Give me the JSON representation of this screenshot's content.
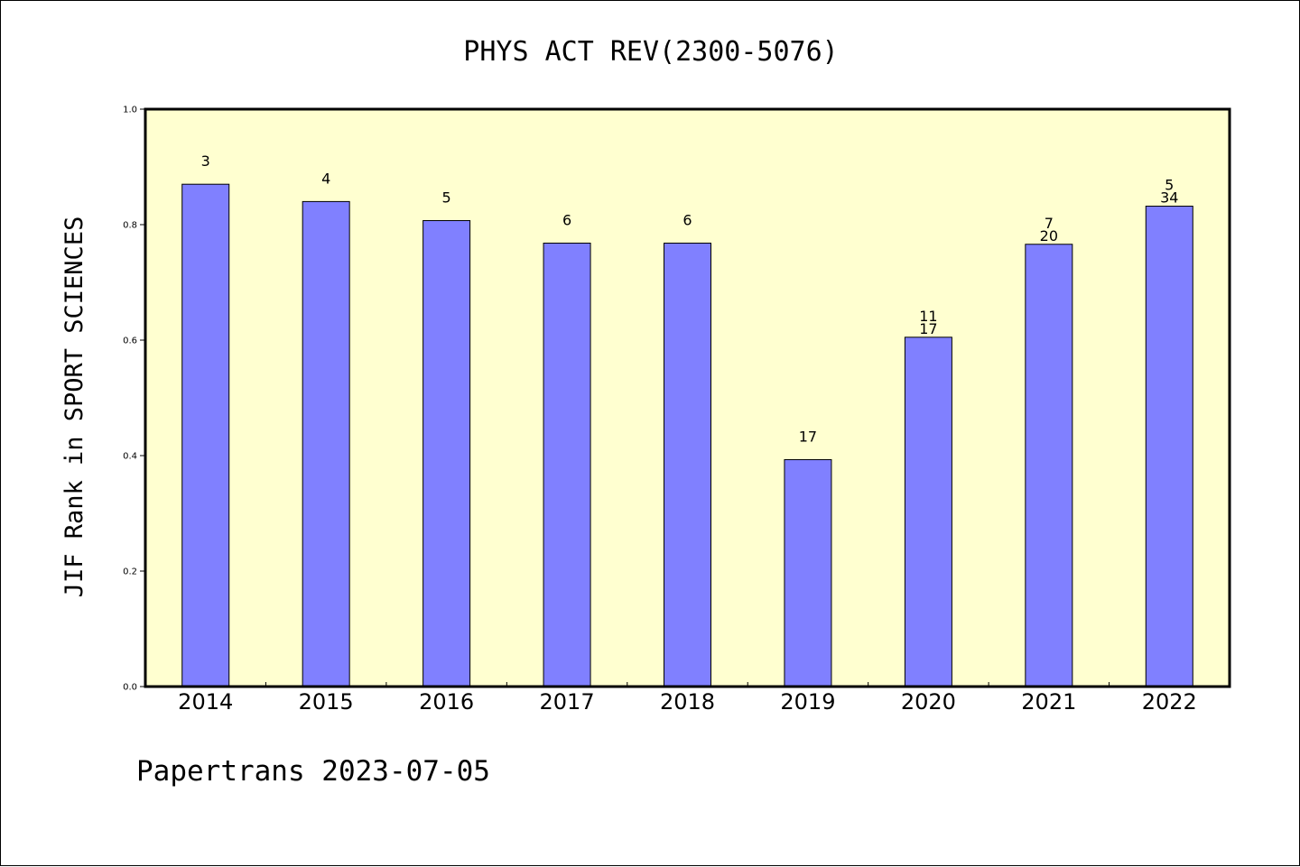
{
  "chart_data": {
    "type": "bar",
    "title": "PHYS ACT REV(2300-5076)",
    "ylabel": "JIF Rank in SPORT SCIENCES",
    "xlabel": "",
    "ylim": [
      0,
      1.0
    ],
    "yticks": [
      "0.0",
      "0.2",
      "0.4",
      "0.6",
      "0.8",
      "1.0"
    ],
    "categories": [
      "2014",
      "2015",
      "2016",
      "2017",
      "2018",
      "2019",
      "2020",
      "2021",
      "2022"
    ],
    "values": [
      0.87,
      0.84,
      0.807,
      0.768,
      0.768,
      0.393,
      0.605,
      0.766,
      0.832
    ],
    "bar_labels": [
      [
        "3"
      ],
      [
        "4"
      ],
      [
        "5"
      ],
      [
        "6"
      ],
      [
        "6"
      ],
      [
        "17"
      ],
      [
        "11",
        "17"
      ],
      [
        "7",
        "20"
      ],
      [
        "5",
        "34"
      ]
    ],
    "grid": false,
    "colors": {
      "plot_background": "#ffffd0",
      "bar_fill": "#8080ff",
      "bar_stroke": "#000000"
    }
  },
  "footer": {
    "text": "Papertrans 2023-07-05"
  }
}
